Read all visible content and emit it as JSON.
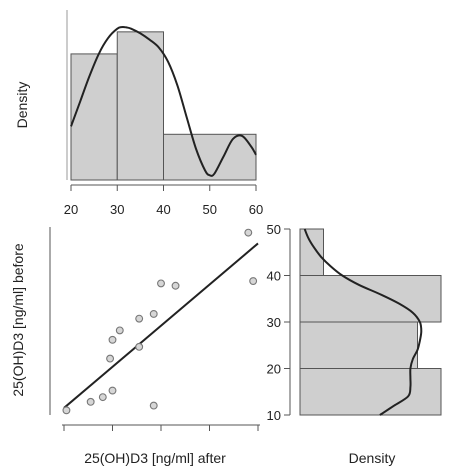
{
  "chart_data": [
    {
      "type": "histogram",
      "panel": "top",
      "xlabel": "",
      "ylabel": "Density",
      "xlim": [
        20,
        60
      ],
      "x_ticks": [
        "20",
        "30",
        "40",
        "50",
        "60"
      ],
      "bins": [
        {
          "from": 20,
          "to": 30,
          "density": 0.04
        },
        {
          "from": 30,
          "to": 40,
          "density": 0.047
        },
        {
          "from": 40,
          "to": 60,
          "density": 0.0145
        }
      ],
      "density_curve": {
        "x": [
          20,
          22,
          24,
          26,
          28,
          30,
          31,
          32,
          33,
          35,
          37,
          39,
          41,
          43,
          45,
          47,
          49,
          50,
          51,
          53,
          55,
          57,
          59,
          60
        ],
        "y": [
          0.017,
          0.025,
          0.033,
          0.04,
          0.045,
          0.048,
          0.0485,
          0.0484,
          0.048,
          0.0465,
          0.0445,
          0.042,
          0.0375,
          0.03,
          0.02,
          0.01,
          0.003,
          0.0015,
          0.002,
          0.0075,
          0.013,
          0.014,
          0.0105,
          0.008
        ]
      }
    },
    {
      "type": "scatter",
      "panel": "main",
      "xlabel": "25(OH)D3 [ng/ml] after",
      "ylabel": "25(OH)D3 [ng/ml] before",
      "x_ticks": [
        "",
        "",
        "",
        "",
        ""
      ],
      "y_ticks": [
        "10",
        "20",
        "30",
        "40",
        "50"
      ],
      "ylim": [
        10,
        50
      ],
      "points": [
        {
          "x": 20.5,
          "y": 11.0
        },
        {
          "x": 25.5,
          "y": 12.8
        },
        {
          "x": 28.0,
          "y": 13.8
        },
        {
          "x": 30.0,
          "y": 15.2
        },
        {
          "x": 29.5,
          "y": 22.0
        },
        {
          "x": 30.0,
          "y": 26.0
        },
        {
          "x": 31.5,
          "y": 28.0
        },
        {
          "x": 35.5,
          "y": 24.5
        },
        {
          "x": 35.5,
          "y": 30.5
        },
        {
          "x": 38.5,
          "y": 31.5
        },
        {
          "x": 38.5,
          "y": 12.0
        },
        {
          "x": 40.0,
          "y": 38.0
        },
        {
          "x": 43.0,
          "y": 37.5
        },
        {
          "x": 58.0,
          "y": 48.8
        },
        {
          "x": 59.0,
          "y": 38.5
        }
      ],
      "fit_line": {
        "x": [
          20,
          60
        ],
        "y": [
          11.5,
          46.5
        ]
      }
    },
    {
      "type": "histogram",
      "panel": "right",
      "orientation": "horizontal",
      "xlabel": "Density",
      "y_ticks": [
        "10",
        "20",
        "30",
        "40",
        "50"
      ],
      "ylim": [
        10,
        50
      ],
      "bins": [
        {
          "from": 10,
          "to": 20,
          "density": 0.03
        },
        {
          "from": 20,
          "to": 30,
          "density": 0.025
        },
        {
          "from": 30,
          "to": 40,
          "density": 0.03
        },
        {
          "from": 40,
          "to": 50,
          "density": 0.005
        }
      ],
      "density_curve": {
        "y": [
          10,
          12,
          14,
          16,
          18,
          20,
          22,
          24,
          26,
          28,
          30,
          32,
          34,
          36,
          38,
          40,
          42,
          44,
          46,
          48,
          50
        ],
        "x": [
          0.017,
          0.02,
          0.023,
          0.0235,
          0.0235,
          0.0235,
          0.024,
          0.025,
          0.0255,
          0.0258,
          0.0255,
          0.024,
          0.021,
          0.017,
          0.0125,
          0.009,
          0.0065,
          0.0045,
          0.003,
          0.0018,
          0.001
        ]
      }
    }
  ]
}
